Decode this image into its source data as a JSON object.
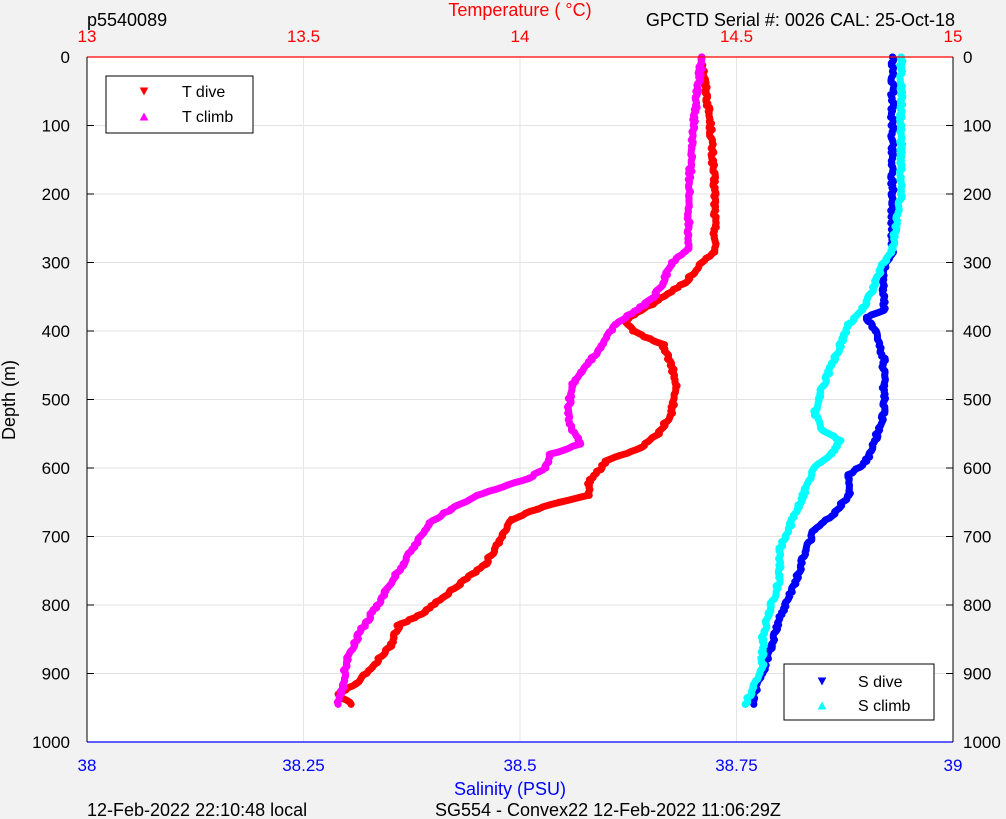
{
  "header": {
    "profile_id": "p5540089",
    "calibration": "GPCTD Serial #: 0026 CAL: 25-Oct-18"
  },
  "footer": {
    "local_time": "12-Feb-2022 22:10:48 local",
    "mission": "SG554 - Convex22 12-Feb-2022 11:06:29Z"
  },
  "colors": {
    "t_dive": "#ff0000",
    "t_climb": "#ff00ff",
    "s_dive": "#0000ff",
    "s_climb": "#00ffff",
    "temperature_axis": "#ff0000",
    "salinity_axis": "#0000ff"
  },
  "chart_data": {
    "type": "line",
    "ylabel": "Depth (m)",
    "ylim": [
      0,
      1000
    ],
    "y_reversed": true,
    "y_ticks": [
      "0",
      "100",
      "200",
      "300",
      "400",
      "500",
      "600",
      "700",
      "800",
      "900",
      "1000"
    ],
    "grid": true,
    "temperature_axis": {
      "label": "Temperature (    °C)",
      "position": "top",
      "range": [
        13,
        15
      ],
      "ticks": [
        "13",
        "13.5",
        "14",
        "14.5",
        "15"
      ]
    },
    "salinity_axis": {
      "label": "Salinity (PSU)",
      "position": "bottom",
      "range": [
        38,
        39
      ],
      "ticks": [
        "38",
        "38.25",
        "38.5",
        "38.75",
        "39"
      ]
    },
    "legends": [
      {
        "placement": "top-left",
        "entries": [
          "T dive",
          "T climb"
        ]
      },
      {
        "placement": "bottom-right",
        "entries": [
          "S dive",
          "S climb"
        ]
      }
    ],
    "series": [
      {
        "name": "T dive",
        "axis": "temperature",
        "marker": "triangle-down",
        "points": [
          [
            14.42,
            0
          ],
          [
            14.43,
            50
          ],
          [
            14.44,
            100
          ],
          [
            14.45,
            200
          ],
          [
            14.45,
            285
          ],
          [
            14.42,
            300
          ],
          [
            14.38,
            330
          ],
          [
            14.32,
            355
          ],
          [
            14.28,
            370
          ],
          [
            14.24,
            385
          ],
          [
            14.26,
            400
          ],
          [
            14.33,
            420
          ],
          [
            14.35,
            450
          ],
          [
            14.36,
            480
          ],
          [
            14.35,
            520
          ],
          [
            14.32,
            550
          ],
          [
            14.28,
            570
          ],
          [
            14.2,
            590
          ],
          [
            14.16,
            620
          ],
          [
            14.16,
            640
          ],
          [
            14.09,
            650
          ],
          [
            14.04,
            660
          ],
          [
            13.98,
            675
          ],
          [
            13.96,
            700
          ],
          [
            13.92,
            740
          ],
          [
            13.86,
            770
          ],
          [
            13.82,
            790
          ],
          [
            13.78,
            810
          ],
          [
            13.72,
            830
          ],
          [
            13.7,
            860
          ],
          [
            13.66,
            890
          ],
          [
            13.62,
            915
          ],
          [
            13.58,
            930
          ],
          [
            13.61,
            945
          ]
        ]
      },
      {
        "name": "T climb",
        "axis": "temperature",
        "marker": "triangle-up",
        "points": [
          [
            14.42,
            0
          ],
          [
            14.41,
            50
          ],
          [
            14.4,
            100
          ],
          [
            14.39,
            200
          ],
          [
            14.39,
            280
          ],
          [
            14.35,
            300
          ],
          [
            14.33,
            330
          ],
          [
            14.31,
            350
          ],
          [
            14.28,
            365
          ],
          [
            14.22,
            390
          ],
          [
            14.2,
            410
          ],
          [
            14.18,
            430
          ],
          [
            14.14,
            460
          ],
          [
            14.12,
            480
          ],
          [
            14.11,
            520
          ],
          [
            14.12,
            545
          ],
          [
            14.14,
            565
          ],
          [
            14.07,
            580
          ],
          [
            14.06,
            600
          ],
          [
            14.02,
            615
          ],
          [
            13.97,
            625
          ],
          [
            13.9,
            640
          ],
          [
            13.84,
            660
          ],
          [
            13.79,
            680
          ],
          [
            13.77,
            700
          ],
          [
            13.73,
            740
          ],
          [
            13.69,
            780
          ],
          [
            13.66,
            810
          ],
          [
            13.63,
            840
          ],
          [
            13.6,
            880
          ],
          [
            13.59,
            920
          ],
          [
            13.58,
            945
          ]
        ]
      },
      {
        "name": "S dive",
        "axis": "salinity",
        "marker": "triangle-down",
        "points": [
          [
            38.93,
            0
          ],
          [
            38.93,
            100
          ],
          [
            38.93,
            200
          ],
          [
            38.93,
            285
          ],
          [
            38.92,
            310
          ],
          [
            38.92,
            340
          ],
          [
            38.92,
            370
          ],
          [
            38.9,
            380
          ],
          [
            38.91,
            400
          ],
          [
            38.92,
            440
          ],
          [
            38.92,
            480
          ],
          [
            38.92,
            520
          ],
          [
            38.91,
            560
          ],
          [
            38.9,
            590
          ],
          [
            38.88,
            610
          ],
          [
            38.88,
            640
          ],
          [
            38.86,
            670
          ],
          [
            38.84,
            690
          ],
          [
            38.83,
            720
          ],
          [
            38.82,
            760
          ],
          [
            38.81,
            790
          ],
          [
            38.8,
            820
          ],
          [
            38.79,
            860
          ],
          [
            38.78,
            900
          ],
          [
            38.77,
            930
          ],
          [
            38.77,
            945
          ]
        ]
      },
      {
        "name": "S climb",
        "axis": "salinity",
        "marker": "triangle-up",
        "points": [
          [
            38.94,
            0
          ],
          [
            38.94,
            100
          ],
          [
            38.94,
            200
          ],
          [
            38.93,
            280
          ],
          [
            38.92,
            300
          ],
          [
            38.91,
            330
          ],
          [
            38.9,
            360
          ],
          [
            38.88,
            390
          ],
          [
            38.87,
            420
          ],
          [
            38.86,
            450
          ],
          [
            38.85,
            480
          ],
          [
            38.84,
            520
          ],
          [
            38.85,
            545
          ],
          [
            38.87,
            560
          ],
          [
            38.86,
            580
          ],
          [
            38.84,
            600
          ],
          [
            38.83,
            630
          ],
          [
            38.82,
            660
          ],
          [
            38.81,
            690
          ],
          [
            38.8,
            720
          ],
          [
            38.8,
            760
          ],
          [
            38.79,
            800
          ],
          [
            38.78,
            850
          ],
          [
            38.78,
            890
          ],
          [
            38.77,
            920
          ],
          [
            38.76,
            945
          ]
        ]
      }
    ]
  }
}
